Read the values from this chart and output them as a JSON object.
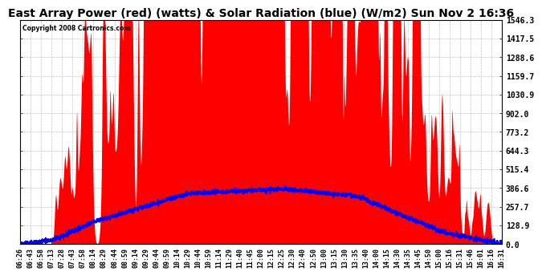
{
  "title": "East Array Power (red) (watts) & Solar Radiation (blue) (W/m2) Sun Nov 2 16:36",
  "copyright": "Copyright 2008 Cartronics.com",
  "yticks": [
    0.0,
    128.9,
    257.7,
    386.6,
    515.4,
    644.3,
    773.2,
    902.0,
    1030.9,
    1159.7,
    1288.6,
    1417.5,
    1546.3
  ],
  "ymax": 1546.3,
  "ymin": 0.0,
  "bg_color": "#ffffff",
  "plot_bg": "#ffffff",
  "red_color": "#ff0000",
  "blue_color": "#0000ff",
  "grid_color": "#aaaaaa",
  "title_fontsize": 10,
  "xtick_labels": [
    "06:26",
    "06:43",
    "06:58",
    "07:13",
    "07:28",
    "07:43",
    "07:58",
    "08:14",
    "08:29",
    "08:44",
    "08:59",
    "09:14",
    "09:29",
    "09:44",
    "09:59",
    "10:14",
    "10:29",
    "10:44",
    "10:59",
    "11:14",
    "11:29",
    "11:40",
    "11:45",
    "12:00",
    "12:15",
    "12:25",
    "12:30",
    "12:40",
    "12:50",
    "13:00",
    "13:15",
    "13:30",
    "13:35",
    "13:40",
    "14:00",
    "14:15",
    "14:30",
    "14:35",
    "14:45",
    "14:50",
    "15:00",
    "15:16",
    "15:31",
    "15:46",
    "16:01",
    "16:16",
    "16:31"
  ]
}
